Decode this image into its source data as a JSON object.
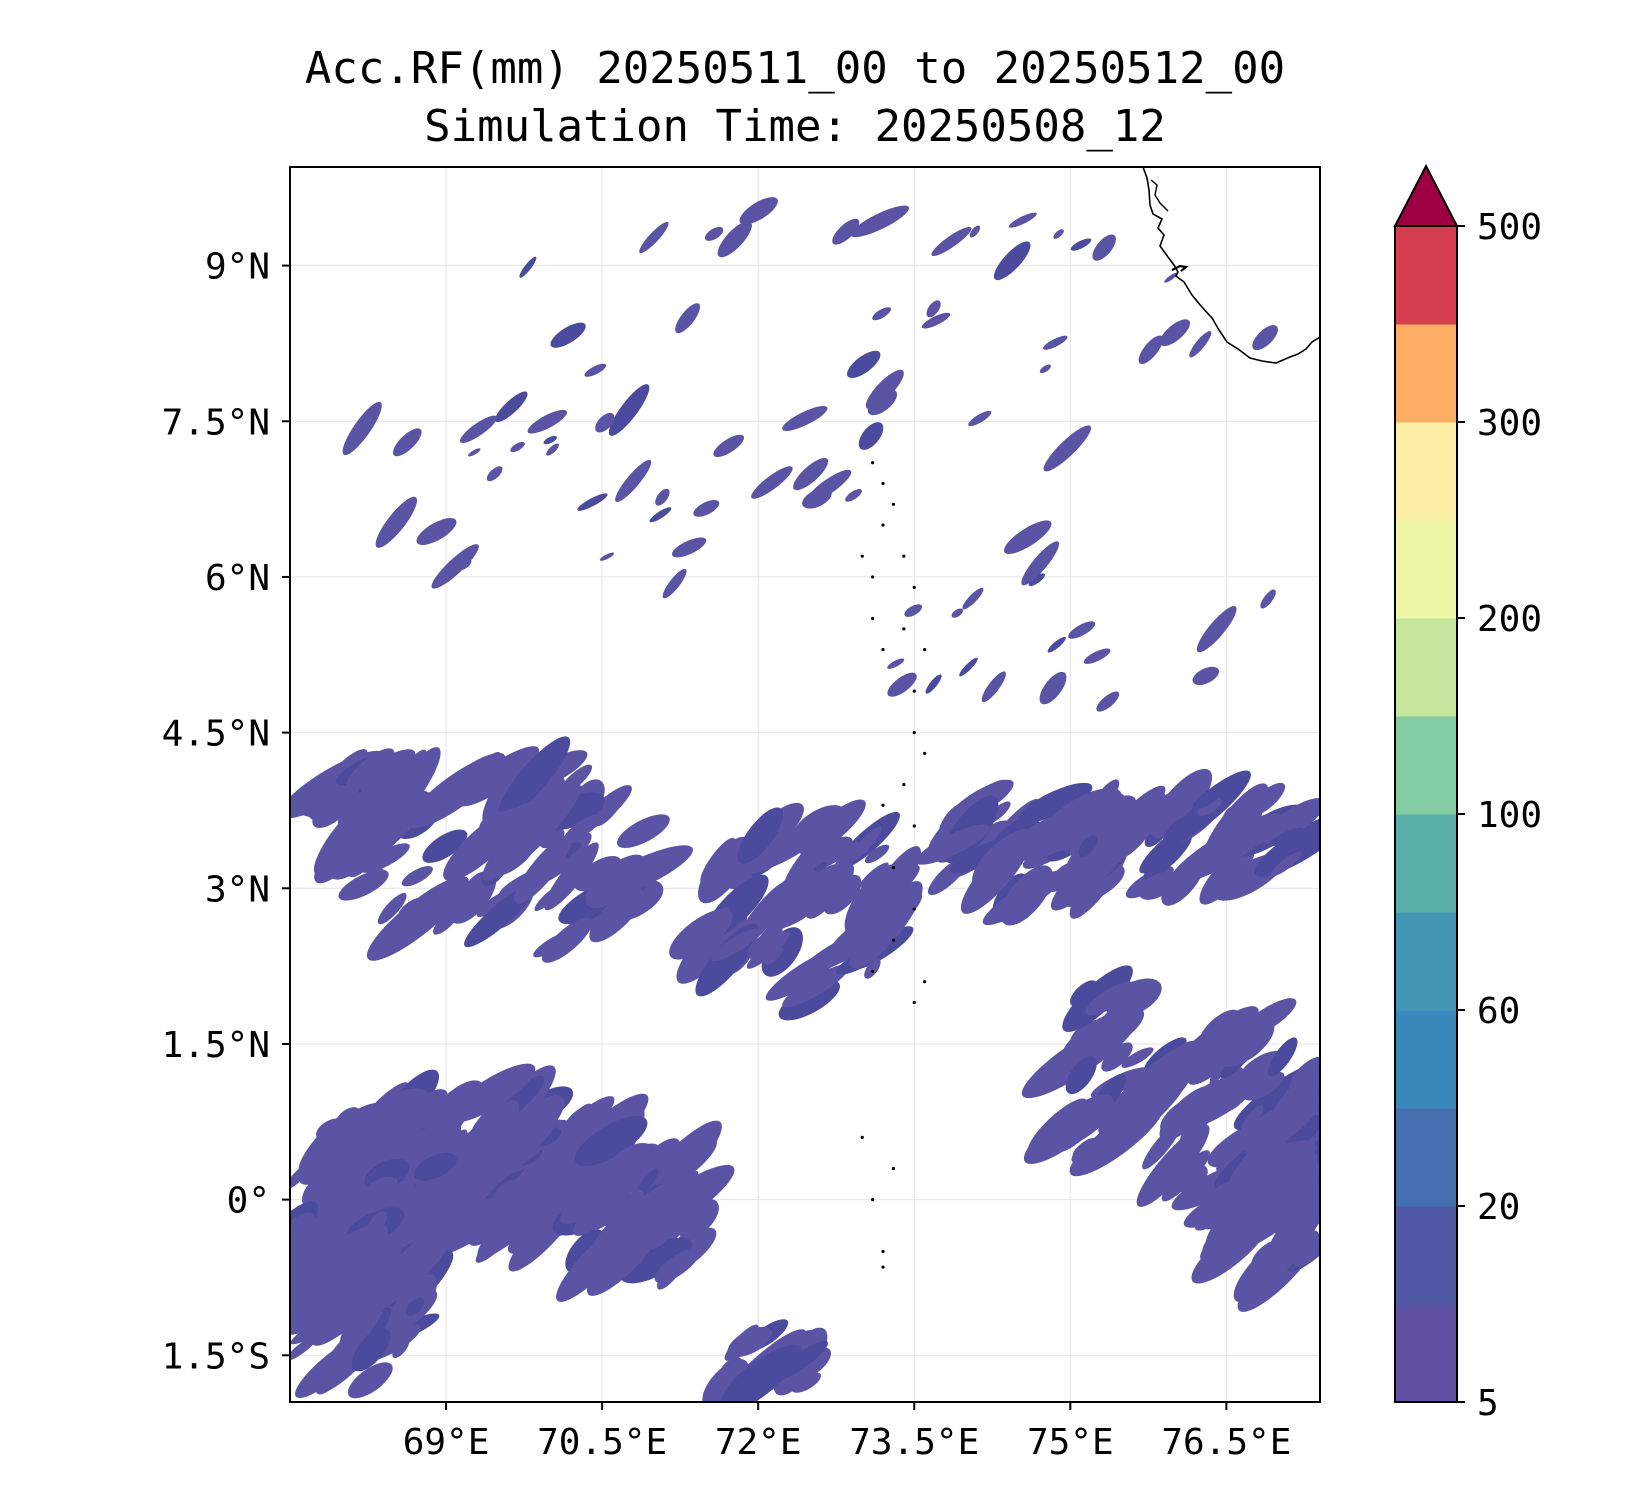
{
  "title": {
    "line1": "Acc.RF(mm) 20250511_00 to 20250512_00",
    "line2": "Simulation Time: 20250508_12"
  },
  "map": {
    "lon_range": [
      67.5,
      77.4
    ],
    "lat_range": [
      -1.95,
      9.95
    ],
    "x_ticks": [
      {
        "value": 69,
        "label": "69°E"
      },
      {
        "value": 70.5,
        "label": "70.5°E"
      },
      {
        "value": 72,
        "label": "72°E"
      },
      {
        "value": 73.5,
        "label": "73.5°E"
      },
      {
        "value": 75,
        "label": "75°E"
      },
      {
        "value": 76.5,
        "label": "76.5°E"
      }
    ],
    "y_ticks": [
      {
        "value": 9,
        "label": "9°N"
      },
      {
        "value": 7.5,
        "label": "7.5°N"
      },
      {
        "value": 6,
        "label": "6°N"
      },
      {
        "value": 4.5,
        "label": "4.5°N"
      },
      {
        "value": 3,
        "label": "3°N"
      },
      {
        "value": 1.5,
        "label": "1.5°N"
      },
      {
        "value": 0,
        "label": "0°"
      },
      {
        "value": -1.5,
        "label": "1.5°S"
      }
    ],
    "grid": true,
    "rain_color": "#5b53a4",
    "rain_dark_color": "#4c4a9c"
  },
  "colorbar": {
    "levels": [
      5,
      10,
      20,
      40,
      60,
      80,
      100,
      150,
      200,
      250,
      300,
      400,
      500
    ],
    "colors": [
      "#5e4fa2",
      "#4f59a6",
      "#466fb2",
      "#3b88bd",
      "#4496b5",
      "#5aaeaa",
      "#84cca3",
      "#c5e69d",
      "#eff6a6",
      "#fdeea6",
      "#fcad63",
      "#d53e4f"
    ],
    "extend_color": "#9e0142",
    "tick_labels": [
      {
        "value": 5,
        "label": "5"
      },
      {
        "value": 20,
        "label": "20"
      },
      {
        "value": 60,
        "label": "60"
      },
      {
        "value": 100,
        "label": "100"
      },
      {
        "value": 200,
        "label": "200"
      },
      {
        "value": 300,
        "label": "300"
      },
      {
        "value": 500,
        "label": "500"
      }
    ]
  },
  "rain_regions": [
    {
      "lon": 69.2,
      "lat": 0.3,
      "rlon": 1.7,
      "rlat": 0.75,
      "density": 0.85
    },
    {
      "lon": 68.1,
      "lat": -0.8,
      "rlon": 0.7,
      "rlat": 1.0,
      "density": 0.8
    },
    {
      "lon": 70.9,
      "lat": -0.2,
      "rlon": 0.7,
      "rlat": 0.6,
      "density": 0.7
    },
    {
      "lon": 72.1,
      "lat": -1.65,
      "rlon": 0.45,
      "rlat": 0.35,
      "density": 0.75
    },
    {
      "lon": 68.3,
      "lat": 3.8,
      "rlon": 0.45,
      "rlat": 0.5,
      "density": 0.8
    },
    {
      "lon": 69.6,
      "lat": 3.3,
      "rlon": 1.5,
      "rlat": 0.9,
      "density": 0.35
    },
    {
      "lon": 72.4,
      "lat": 2.8,
      "rlon": 1.0,
      "rlat": 0.9,
      "density": 0.45
    },
    {
      "lon": 74.6,
      "lat": 3.4,
      "rlon": 1.0,
      "rlat": 0.5,
      "density": 0.5
    },
    {
      "lon": 76.1,
      "lat": 3.5,
      "rlon": 1.2,
      "rlat": 0.5,
      "density": 0.45
    },
    {
      "lon": 76.6,
      "lat": 0.9,
      "rlon": 0.9,
      "rlat": 0.9,
      "density": 0.5
    },
    {
      "lon": 76.9,
      "lat": -0.1,
      "rlon": 0.6,
      "rlat": 0.6,
      "density": 0.55
    },
    {
      "lon": 75.3,
      "lat": 1.2,
      "rlon": 0.6,
      "rlat": 0.9,
      "density": 0.35
    },
    {
      "lon": 70.5,
      "lat": 6.8,
      "rlon": 3.0,
      "rlat": 1.0,
      "density": 0.06
    },
    {
      "lon": 73.0,
      "lat": 8.3,
      "rlon": 4.0,
      "rlat": 1.4,
      "density": 0.04
    },
    {
      "lon": 75.0,
      "lat": 5.5,
      "rlon": 2.0,
      "rlat": 1.0,
      "density": 0.05
    }
  ]
}
